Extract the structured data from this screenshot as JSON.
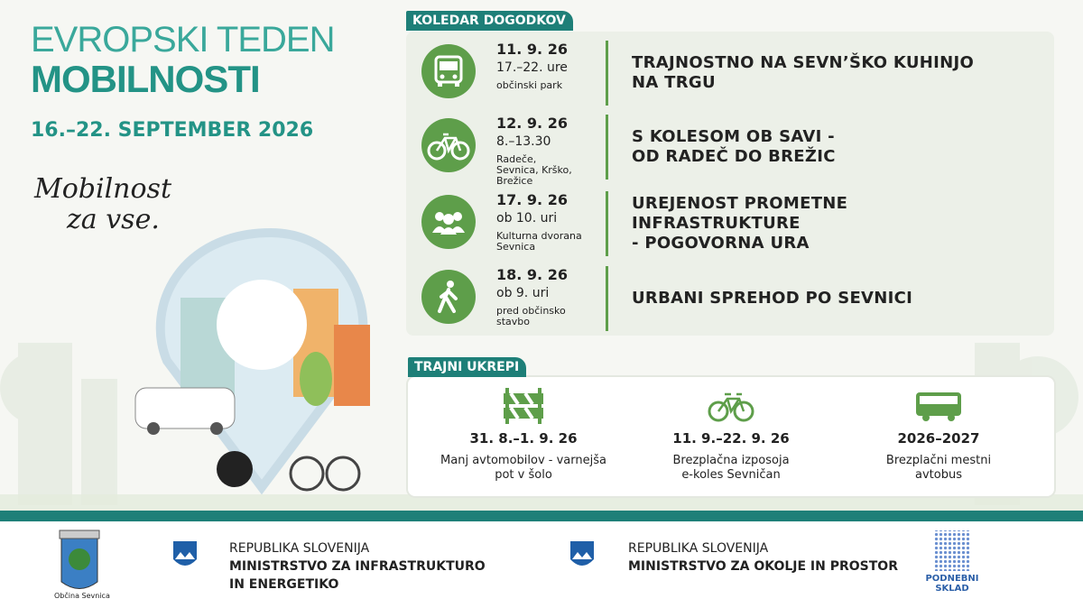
{
  "header": {
    "title_line1": "EVROPSKI TEDEN",
    "title_line2": "MOBILNOSTI",
    "dates": "16.–22. SEPTEMBER 2026",
    "slogan": [
      "Mobilnost",
      "za vse."
    ]
  },
  "calendar": {
    "label": "KOLEDAR DOGODKOV",
    "events": [
      {
        "date": "11. 9. 26",
        "time": "17.–22. ure",
        "place": [
          "občinski park"
        ],
        "title": [
          "TRAJNOSTNO NA SEVN’ŠKO KUHINJO",
          "NA TRGU"
        ]
      },
      {
        "date": "12. 9. 26",
        "time": "8.–13.30",
        "place": [
          "Radeče,",
          "Sevnica, Krško,",
          "Brežice"
        ],
        "title": [
          "S KOLESOM OB SAVI -",
          "OD RADEČ DO BREŽIC"
        ]
      },
      {
        "date": "17. 9. 26",
        "time": "ob 10. uri",
        "place": [
          "Kulturna dvorana",
          "Sevnica"
        ],
        "title": [
          "UREJENOST PROMETNE",
          "INFRASTRUKTURE",
          "- POGOVORNA URA"
        ]
      },
      {
        "date": "18. 9. 26",
        "time": "ob 9. uri",
        "place": [
          "pred občinsko",
          "stavbo"
        ],
        "title": [
          "URBANI SPREHOD PO SEVNICI"
        ]
      }
    ]
  },
  "measures": {
    "label": "TRAJNI UKREPI",
    "items": [
      {
        "dates": "31. 8.–1. 9. 26",
        "description": [
          "Manj avtomobilov - varnejša",
          "pot v šolo"
        ]
      },
      {
        "dates": "11. 9.–22. 9. 26",
        "description": [
          "Brezplačna izposoja",
          "e-koles Sevničan"
        ]
      },
      {
        "dates": "2026–2027",
        "description": [
          "Brezplačni mestni",
          "avtobus"
        ]
      }
    ]
  },
  "footer": {
    "municipality": "Občina Sevnica",
    "ministry1": [
      "REPUBLIKA SLOVENIJA",
      "MINISTRSTVO ZA INFRASTRUKTURO",
      "IN ENERGETIKO"
    ],
    "ministry2": [
      "REPUBLIKA SLOVENIJA",
      "MINISTRSTVO ZA OKOLJE IN PROSTOR"
    ],
    "fund": [
      "PODNEBNI",
      "SKLAD"
    ]
  }
}
